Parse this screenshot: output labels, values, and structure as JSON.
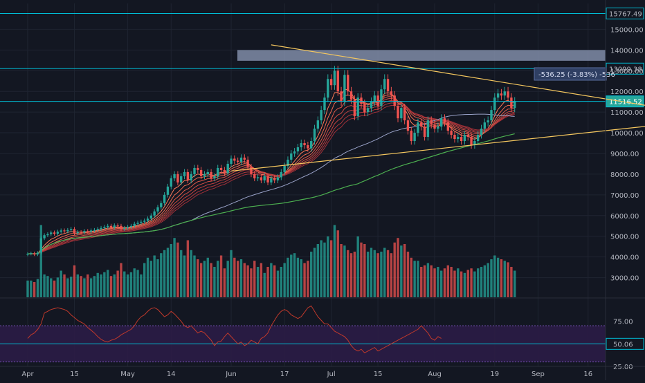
{
  "colors": {
    "background": "#131722",
    "grid": "#1f2431",
    "up": "#26a69a",
    "down": "#ef5350",
    "axis_text": "#b2b5be",
    "level_line": "#00bcd4",
    "trend_line": "#f6c85f",
    "ma_fast": "#e8554e",
    "ma_slow": "#9aa3c9",
    "ma_long": "#4caf50",
    "rsi_line": "#c0392b",
    "rsi_band": "#2b1c46",
    "zone": "#8793b0"
  },
  "chart_data": [
    {
      "type": "candlestick",
      "name": "price",
      "x_tick_labels": [
        "Apr",
        "15",
        "May",
        "14",
        "Jun",
        "17",
        "Jul",
        "15",
        "Aug",
        "19",
        "Sep",
        "16"
      ],
      "x_tick_days": [
        0,
        14,
        30,
        43,
        61,
        77,
        91,
        105,
        122,
        140,
        153,
        168
      ],
      "y_ticks": [
        3000,
        4000,
        5000,
        6000,
        7000,
        8000,
        9000,
        10000,
        11000,
        12000,
        13000,
        14000,
        15000
      ],
      "y_tick_labels": [
        "3000.00",
        "4000.00",
        "5000.00",
        "6000.00",
        "7000.00",
        "8000.00",
        "9000.00",
        "10000.00",
        "11000.00",
        "12000.00",
        "13000.00",
        "14000.00",
        "15000.00"
      ],
      "ylim": [
        2050,
        16250
      ],
      "closes": [
        4150,
        4180,
        4120,
        4200,
        4900,
        5050,
        5100,
        5180,
        5120,
        5220,
        5280,
        5240,
        5300,
        5350,
        5150,
        5200,
        5180,
        5250,
        5220,
        5280,
        5300,
        5350,
        5400,
        5450,
        5500,
        5420,
        5520,
        5500,
        5350,
        5400,
        5450,
        5500,
        5600,
        5650,
        5700,
        5750,
        5850,
        6000,
        6200,
        6400,
        6600,
        7000,
        7400,
        7800,
        8000,
        7600,
        7900,
        8100,
        7700,
        8000,
        8300,
        8200,
        7900,
        8000,
        8100,
        7800,
        7900,
        8300,
        8200,
        8050,
        8500,
        8750,
        8650,
        8600,
        8800,
        8700,
        8350,
        8000,
        7800,
        7850,
        7700,
        7900,
        7600,
        7800,
        7700,
        7850,
        8100,
        8400,
        8700,
        9000,
        9100,
        9300,
        9500,
        9400,
        9250,
        9600,
        10200,
        10600,
        11100,
        11700,
        12600,
        12300,
        13000,
        12000,
        11500,
        12800,
        12000,
        11600,
        10800,
        11700,
        11400,
        11000,
        11200,
        11500,
        11800,
        11300,
        12100,
        12600,
        12000,
        11800,
        11300,
        10700,
        11200,
        10600,
        10100,
        9600,
        10000,
        10500,
        10300,
        9800,
        10600,
        10400,
        10200,
        10300,
        10700,
        10500,
        10100,
        9900,
        9700,
        9800,
        9600,
        9900,
        9800,
        9400,
        9600,
        9900,
        10200,
        10500,
        10600,
        11100,
        11700,
        11900,
        11800,
        12000,
        11700,
        11200,
        11516.52
      ],
      "price_labels": [
        "15767.49",
        "13099.38",
        "11516.52"
      ],
      "levels": [
        15767.49,
        13099.38,
        11516.52
      ],
      "measure_label": "-536.25 (-3.83%) -536",
      "zone": [
        13480,
        14000
      ],
      "ma_fast_last": [
        11100,
        10950,
        10800,
        10700,
        10600,
        10500
      ],
      "trend_upper": [
        [
          73,
          14250
        ],
        [
          195,
          11070
        ]
      ],
      "trend_lower": [
        [
          61,
          8150
        ],
        [
          195,
          10480
        ]
      ]
    },
    {
      "type": "bar",
      "name": "volume",
      "values": [
        0.22,
        0.22,
        0.2,
        0.24,
        0.95,
        0.3,
        0.28,
        0.25,
        0.22,
        0.26,
        0.35,
        0.3,
        0.25,
        0.27,
        0.42,
        0.3,
        0.28,
        0.25,
        0.3,
        0.25,
        0.28,
        0.32,
        0.3,
        0.33,
        0.36,
        0.28,
        0.3,
        0.35,
        0.45,
        0.34,
        0.3,
        0.33,
        0.38,
        0.36,
        0.3,
        0.45,
        0.52,
        0.48,
        0.55,
        0.5,
        0.58,
        0.62,
        0.65,
        0.7,
        0.78,
        0.72,
        0.62,
        0.55,
        0.75,
        0.62,
        0.55,
        0.5,
        0.45,
        0.48,
        0.52,
        0.45,
        0.4,
        0.48,
        0.55,
        0.38,
        0.48,
        0.62,
        0.52,
        0.48,
        0.5,
        0.45,
        0.42,
        0.38,
        0.48,
        0.4,
        0.45,
        0.32,
        0.4,
        0.45,
        0.42,
        0.35,
        0.4,
        0.45,
        0.52,
        0.56,
        0.58,
        0.52,
        0.5,
        0.45,
        0.48,
        0.6,
        0.65,
        0.7,
        0.75,
        0.72,
        0.8,
        0.75,
        0.95,
        0.88,
        0.7,
        0.68,
        0.62,
        0.58,
        0.6,
        0.8,
        0.72,
        0.7,
        0.6,
        0.65,
        0.62,
        0.58,
        0.6,
        0.65,
        0.62,
        0.58,
        0.72,
        0.78,
        0.68,
        0.7,
        0.6,
        0.52,
        0.48,
        0.48,
        0.4,
        0.42,
        0.45,
        0.42,
        0.38,
        0.4,
        0.35,
        0.38,
        0.42,
        0.4,
        0.35,
        0.38,
        0.34,
        0.32,
        0.36,
        0.38,
        0.34,
        0.38,
        0.4,
        0.42,
        0.45,
        0.5,
        0.55,
        0.52,
        0.5,
        0.48,
        0.46,
        0.4,
        0.35
      ]
    },
    {
      "type": "line",
      "name": "rsi",
      "y_ticks": [
        25,
        50,
        75
      ],
      "y_tick_labels": [
        "25.00",
        "50.00",
        "75.00"
      ],
      "ylim": [
        25,
        100
      ],
      "last_label": "50.06",
      "bands": [
        30,
        70
      ],
      "values": [
        50.06,
        56,
        60,
        62,
        66,
        72,
        84,
        86,
        88,
        89,
        90,
        89,
        88,
        86,
        82,
        79,
        76,
        74,
        72,
        68,
        65,
        62,
        58,
        55,
        53,
        52,
        54,
        55,
        57,
        60,
        62,
        64,
        66,
        70,
        76,
        80,
        82,
        86,
        89,
        90,
        88,
        84,
        80,
        82,
        86,
        83,
        79,
        75,
        70,
        68,
        70,
        66,
        62,
        64,
        62,
        58,
        54,
        48,
        52,
        53,
        58,
        62,
        58,
        54,
        50,
        52,
        48,
        50,
        54,
        52,
        50,
        56,
        58,
        62,
        70,
        76,
        82,
        86,
        88,
        86,
        82,
        80,
        78,
        80,
        85,
        90,
        92,
        86,
        80,
        76,
        72,
        72,
        68,
        64,
        62,
        60,
        58,
        54,
        48,
        44,
        42,
        44,
        40,
        42,
        44,
        46,
        42,
        44,
        46,
        48,
        50,
        52,
        54,
        56,
        58,
        60,
        62,
        64,
        66,
        70,
        66,
        62,
        56,
        54,
        58,
        56
      ]
    }
  ]
}
